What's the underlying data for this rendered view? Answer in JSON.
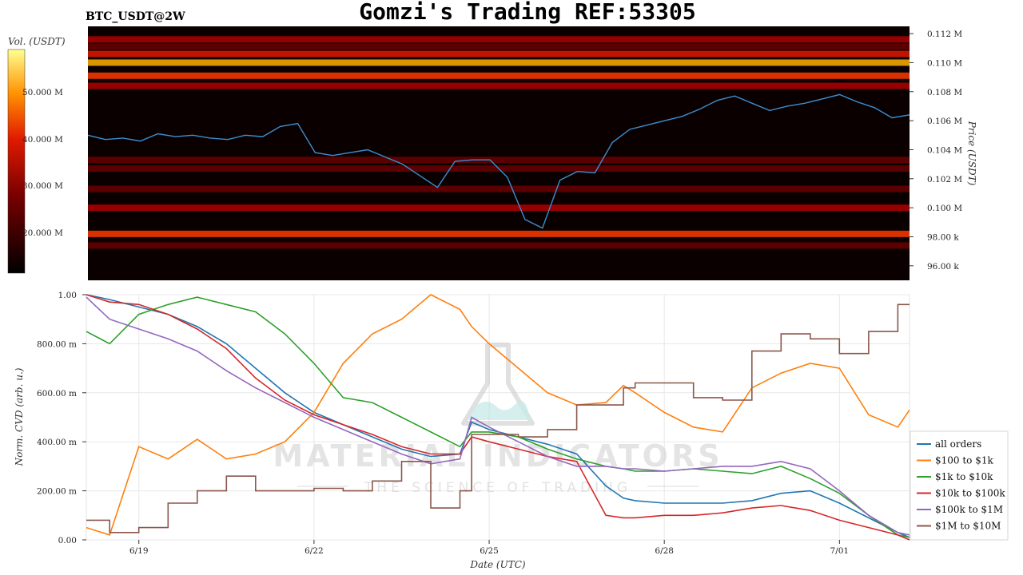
{
  "title": "Gomzi's Trading REF:53305",
  "symbol": "BTC_USDT@2W",
  "colors": {
    "heat_bg": "#0a0000",
    "price_line": "#3b8fd1",
    "all_orders": "#1f77b4",
    "s100_1k": "#ff7f0e",
    "s1k_10k": "#2ca02c",
    "s10k_100k": "#d62728",
    "s100k_1m": "#9467bd",
    "s1m_10m": "#8c564b"
  },
  "watermark": {
    "line1": "MATERIAL INDICATORS",
    "line2": "THE SCIENCE OF TRADING"
  },
  "colorbar": {
    "label": "Vol. (USDT)",
    "tick_labels": [
      "50.000 M",
      "40.000 M",
      "30.000 M",
      "20.000 M"
    ]
  },
  "chart_data": [
    {
      "type": "heatmap",
      "ylabel": "Price (USDT)",
      "y_tick_labels": [
        "0.112 M",
        "0.110 M",
        "0.108 M",
        "0.106 M",
        "0.104 M",
        "0.102 M",
        "0.100 M",
        "98.00 k",
        "96.00 k"
      ],
      "ylim": [
        95000,
        112500
      ],
      "price_series": {
        "name": "price",
        "x": [
          0,
          0.3,
          0.6,
          0.9,
          1.2,
          1.5,
          1.8,
          2.1,
          2.4,
          2.7,
          3.0,
          3.3,
          3.6,
          3.9,
          4.2,
          4.5,
          4.8,
          5.1,
          5.4,
          5.7,
          6.0,
          6.3,
          6.6,
          6.9,
          7.2,
          7.5,
          7.8,
          8.1,
          8.4,
          8.7,
          9.0,
          9.3,
          9.6,
          9.9,
          10.2,
          10.5,
          10.8,
          11.1,
          11.4,
          11.7,
          12.0,
          12.3,
          12.6,
          12.9,
          13.2,
          13.5,
          13.8,
          14.1
        ],
        "y": [
          105000,
          104700,
          104800,
          104600,
          105100,
          104900,
          105000,
          104800,
          104700,
          105000,
          104900,
          105600,
          105800,
          103800,
          103600,
          103800,
          104000,
          103500,
          103000,
          102200,
          101400,
          103200,
          103300,
          103300,
          102100,
          99200,
          98600,
          101900,
          102500,
          102400,
          104500,
          105400,
          105700,
          106000,
          106300,
          106800,
          107400,
          107700,
          107200,
          106700,
          107000,
          107200,
          107500,
          107800,
          107300,
          106900,
          106200,
          106400
        ]
      },
      "levels": [
        {
          "price": 111600,
          "intensity": 0.55
        },
        {
          "price": 111100,
          "intensity": 0.4
        },
        {
          "price": 110600,
          "intensity": 0.7
        },
        {
          "price": 110000,
          "intensity": 0.95
        },
        {
          "price": 109100,
          "intensity": 0.85
        },
        {
          "price": 108400,
          "intensity": 0.55
        },
        {
          "price": 103300,
          "intensity": 0.45
        },
        {
          "price": 102700,
          "intensity": 0.4
        },
        {
          "price": 101300,
          "intensity": 0.45
        },
        {
          "price": 100000,
          "intensity": 0.5
        },
        {
          "price": 98200,
          "intensity": 0.8
        },
        {
          "price": 97400,
          "intensity": 0.35
        }
      ]
    },
    {
      "type": "line",
      "xlabel": "Date (UTC)",
      "ylabel": "Norm. CVD (arb. u.)",
      "x_tick_labels": [
        "6/19",
        "6/22",
        "6/25",
        "6/28",
        "7/01"
      ],
      "x_ticks": [
        1,
        4,
        7,
        10,
        13
      ],
      "xlim": [
        0.1,
        14.2
      ],
      "y_tick_labels": [
        "0.00",
        "200.00 m",
        "400.00 m",
        "600.00 m",
        "800.00 m",
        "1.00"
      ],
      "ylim": [
        0,
        1
      ],
      "x": [
        0.1,
        0.5,
        1.0,
        1.5,
        2.0,
        2.5,
        3.0,
        3.5,
        4.0,
        4.5,
        5.0,
        5.5,
        6.0,
        6.5,
        6.7,
        7.0,
        7.5,
        8.0,
        8.5,
        9.0,
        9.3,
        9.5,
        10.0,
        10.5,
        11.0,
        11.5,
        12.0,
        12.5,
        13.0,
        13.5,
        14.0,
        14.2
      ],
      "series": [
        {
          "name": "all orders",
          "values": [
            1.0,
            0.98,
            0.95,
            0.92,
            0.87,
            0.8,
            0.7,
            0.6,
            0.52,
            0.47,
            0.42,
            0.37,
            0.34,
            0.35,
            0.48,
            0.45,
            0.42,
            0.39,
            0.35,
            0.22,
            0.17,
            0.16,
            0.15,
            0.15,
            0.15,
            0.16,
            0.19,
            0.2,
            0.15,
            0.09,
            0.03,
            0.01
          ]
        },
        {
          "name": "$100 to $1k",
          "values": [
            0.05,
            0.02,
            0.38,
            0.33,
            0.41,
            0.33,
            0.35,
            0.4,
            0.52,
            0.72,
            0.84,
            0.9,
            1.0,
            0.94,
            0.87,
            0.8,
            0.7,
            0.6,
            0.55,
            0.56,
            0.63,
            0.6,
            0.52,
            0.46,
            0.44,
            0.62,
            0.68,
            0.72,
            0.7,
            0.51,
            0.46,
            0.53
          ]
        },
        {
          "name": "$1k to $10k",
          "values": [
            0.85,
            0.8,
            0.92,
            0.96,
            0.99,
            0.96,
            0.93,
            0.84,
            0.72,
            0.58,
            0.56,
            0.5,
            0.44,
            0.38,
            0.44,
            0.44,
            0.42,
            0.37,
            0.33,
            0.3,
            0.29,
            0.28,
            0.28,
            0.29,
            0.28,
            0.27,
            0.3,
            0.25,
            0.19,
            0.1,
            0.02,
            0.01
          ]
        },
        {
          "name": "$10k to $100k",
          "values": [
            1.0,
            0.97,
            0.96,
            0.92,
            0.86,
            0.78,
            0.66,
            0.57,
            0.51,
            0.47,
            0.43,
            0.38,
            0.35,
            0.35,
            0.42,
            0.4,
            0.37,
            0.34,
            0.32,
            0.1,
            0.09,
            0.09,
            0.1,
            0.1,
            0.11,
            0.13,
            0.14,
            0.12,
            0.08,
            0.05,
            0.02,
            0.0
          ]
        },
        {
          "name": "$100k to $1M",
          "values": [
            0.99,
            0.9,
            0.86,
            0.82,
            0.77,
            0.69,
            0.62,
            0.56,
            0.5,
            0.45,
            0.4,
            0.35,
            0.31,
            0.33,
            0.5,
            0.46,
            0.4,
            0.34,
            0.3,
            0.3,
            0.29,
            0.29,
            0.28,
            0.29,
            0.3,
            0.3,
            0.32,
            0.29,
            0.2,
            0.1,
            0.03,
            0.02
          ]
        },
        {
          "name": "$1M to $10M",
          "values": [
            0.08,
            0.03,
            0.05,
            0.15,
            0.2,
            0.26,
            0.2,
            0.2,
            0.21,
            0.2,
            0.24,
            0.32,
            0.13,
            0.2,
            0.43,
            0.43,
            0.42,
            0.45,
            0.55,
            0.55,
            0.62,
            0.64,
            0.64,
            0.58,
            0.57,
            0.77,
            0.84,
            0.82,
            0.76,
            0.85,
            0.96,
            0.96
          ]
        }
      ]
    }
  ]
}
